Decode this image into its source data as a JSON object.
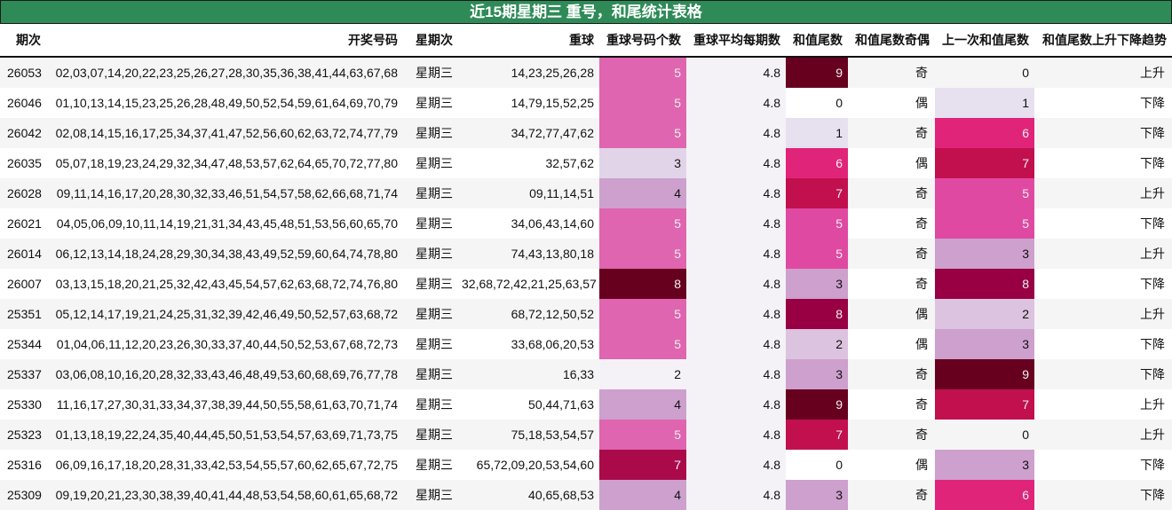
{
  "title": "近15期星期三 重号，和尾统计表格",
  "columns": [
    "期次",
    "开奖号码",
    "星期次",
    "重球",
    "重球号码个数",
    "重球平均每期数",
    "和值尾数",
    "和值尾数奇偶",
    "上一次和值尾数",
    "和值尾数上升下降趋势"
  ],
  "rows": [
    {
      "period": "26053",
      "numbers": "02,03,07,14,20,22,23,25,26,27,28,30,35,36,38,41,44,63,67,68",
      "weekday": "星期三",
      "repeat": "14,23,25,26,28",
      "count": "5",
      "avg": "4.8",
      "tail": "9",
      "parity": "奇",
      "prev_tail": "0",
      "trend": "上升"
    },
    {
      "period": "26046",
      "numbers": "01,10,13,14,15,23,25,26,28,48,49,50,52,54,59,61,64,69,70,79",
      "weekday": "星期三",
      "repeat": "14,79,15,52,25",
      "count": "5",
      "avg": "4.8",
      "tail": "0",
      "parity": "偶",
      "prev_tail": "1",
      "trend": "下降"
    },
    {
      "period": "26042",
      "numbers": "02,08,14,15,16,17,25,34,37,41,47,52,56,60,62,63,72,74,77,79",
      "weekday": "星期三",
      "repeat": "34,72,77,47,62",
      "count": "5",
      "avg": "4.8",
      "tail": "1",
      "parity": "奇",
      "prev_tail": "6",
      "trend": "下降"
    },
    {
      "period": "26035",
      "numbers": "05,07,18,19,23,24,29,32,34,47,48,53,57,62,64,65,70,72,77,80",
      "weekday": "星期三",
      "repeat": "32,57,62",
      "count": "3",
      "avg": "4.8",
      "tail": "6",
      "parity": "偶",
      "prev_tail": "7",
      "trend": "下降"
    },
    {
      "period": "26028",
      "numbers": "09,11,14,16,17,20,28,30,32,33,46,51,54,57,58,62,66,68,71,74",
      "weekday": "星期三",
      "repeat": "09,11,14,51",
      "count": "4",
      "avg": "4.8",
      "tail": "7",
      "parity": "奇",
      "prev_tail": "5",
      "trend": "上升"
    },
    {
      "period": "26021",
      "numbers": "04,05,06,09,10,11,14,19,21,31,34,43,45,48,51,53,56,60,65,70",
      "weekday": "星期三",
      "repeat": "34,06,43,14,60",
      "count": "5",
      "avg": "4.8",
      "tail": "5",
      "parity": "奇",
      "prev_tail": "5",
      "trend": "下降"
    },
    {
      "period": "26014",
      "numbers": "06,12,13,14,18,24,28,29,30,34,38,43,49,52,59,60,64,74,78,80",
      "weekday": "星期三",
      "repeat": "74,43,13,80,18",
      "count": "5",
      "avg": "4.8",
      "tail": "5",
      "parity": "奇",
      "prev_tail": "3",
      "trend": "上升"
    },
    {
      "period": "26007",
      "numbers": "03,13,15,18,20,21,25,32,42,43,45,54,57,62,63,68,72,74,76,80",
      "weekday": "星期三",
      "repeat": "32,68,72,42,21,25,63,57",
      "count": "8",
      "avg": "4.8",
      "tail": "3",
      "parity": "奇",
      "prev_tail": "8",
      "trend": "下降"
    },
    {
      "period": "25351",
      "numbers": "05,12,14,17,19,21,24,25,31,32,39,42,46,49,50,52,57,63,68,72",
      "weekday": "星期三",
      "repeat": "68,72,12,50,52",
      "count": "5",
      "avg": "4.8",
      "tail": "8",
      "parity": "偶",
      "prev_tail": "2",
      "trend": "上升"
    },
    {
      "period": "25344",
      "numbers": "01,04,06,11,12,20,23,26,30,33,37,40,44,50,52,53,67,68,72,73",
      "weekday": "星期三",
      "repeat": "33,68,06,20,53",
      "count": "5",
      "avg": "4.8",
      "tail": "2",
      "parity": "偶",
      "prev_tail": "3",
      "trend": "下降"
    },
    {
      "period": "25337",
      "numbers": "03,06,08,10,16,20,28,32,33,43,46,48,49,53,60,68,69,76,77,78",
      "weekday": "星期三",
      "repeat": "16,33",
      "count": "2",
      "avg": "4.8",
      "tail": "3",
      "parity": "奇",
      "prev_tail": "9",
      "trend": "下降"
    },
    {
      "period": "25330",
      "numbers": "11,16,17,27,30,31,33,34,37,38,39,44,50,55,58,61,63,70,71,74",
      "weekday": "星期三",
      "repeat": "50,44,71,63",
      "count": "4",
      "avg": "4.8",
      "tail": "9",
      "parity": "奇",
      "prev_tail": "7",
      "trend": "上升"
    },
    {
      "period": "25323",
      "numbers": "01,13,18,19,22,24,35,40,44,45,50,51,53,54,57,63,69,71,73,75",
      "weekday": "星期三",
      "repeat": "75,18,53,54,57",
      "count": "5",
      "avg": "4.8",
      "tail": "7",
      "parity": "奇",
      "prev_tail": "0",
      "trend": "上升"
    },
    {
      "period": "25316",
      "numbers": "06,09,16,17,18,20,28,31,33,42,53,54,55,57,60,62,65,67,72,75",
      "weekday": "星期三",
      "repeat": "65,72,09,20,53,54,60",
      "count": "7",
      "avg": "4.8",
      "tail": "0",
      "parity": "偶",
      "prev_tail": "3",
      "trend": "下降"
    },
    {
      "period": "25309",
      "numbers": "09,19,20,21,23,30,38,39,40,41,44,48,53,54,58,60,61,65,68,72",
      "weekday": "星期三",
      "repeat": "40,65,68,53",
      "count": "4",
      "avg": "4.8",
      "tail": "3",
      "parity": "奇",
      "prev_tail": "6",
      "trend": "下降"
    }
  ],
  "colors": {
    "title_bg": "#2e8b57",
    "count_scale": {
      "2": "#f4f2f7",
      "3": "#e2d4e8",
      "4": "#cda0cd",
      "5": "#df65b0",
      "7": "#ab0a4a",
      "8": "#67001f"
    },
    "tail_scale": {
      "0": "",
      "1": "#e7e1ef",
      "2": "#dcc3df",
      "3": "#cda0cd",
      "4": "#cda0cd",
      "5": "#e049a1",
      "6": "#e0247a",
      "7": "#c2104f",
      "8": "#980043",
      "9": "#67001f"
    }
  }
}
